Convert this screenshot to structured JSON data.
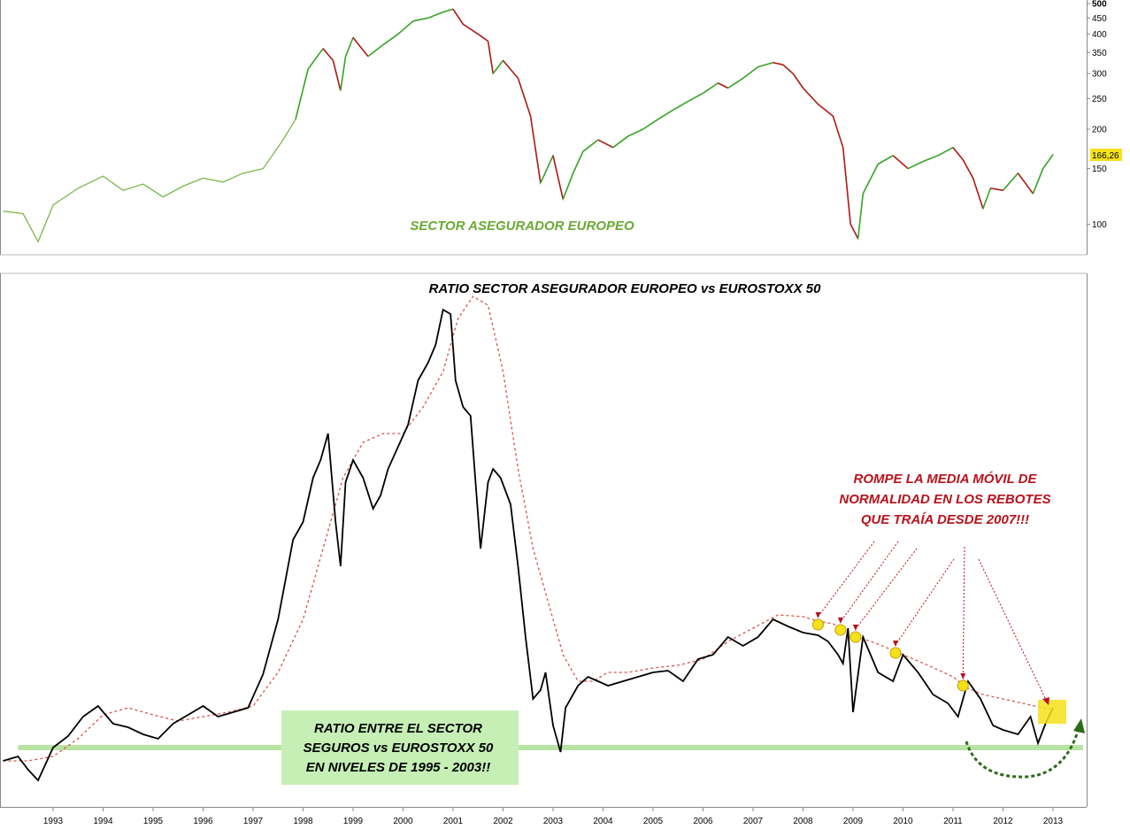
{
  "chart_data": [
    {
      "type": "line",
      "title": "SECTOR ASEGURADOR EUROPEO",
      "y_scale": "log",
      "ylim": [
        80,
        500
      ],
      "y_ticks": [
        500,
        450,
        400,
        350,
        300,
        250,
        200,
        150,
        100
      ],
      "last_value_label": "166,26",
      "colors": {
        "line": "#7ab648",
        "up": "#3aa52a",
        "down": "#b01a1a",
        "title": "#6aa835",
        "last_value_bg": "#f5e11a"
      },
      "x": [
        1992.0,
        1992.4,
        1992.7,
        1993.0,
        1993.5,
        1994.0,
        1994.4,
        1994.8,
        1995.2,
        1995.6,
        1996.0,
        1996.4,
        1996.8,
        1997.2,
        1997.6,
        1997.85,
        1998.1,
        1998.4,
        1998.6,
        1998.75,
        1998.85,
        1999.0,
        1999.3,
        1999.6,
        1999.9,
        2000.2,
        2000.5,
        2000.8,
        2001.0,
        2001.2,
        2001.5,
        2001.7,
        2001.8,
        2002.0,
        2002.3,
        2002.55,
        2002.75,
        2003.0,
        2003.2,
        2003.4,
        2003.6,
        2003.9,
        2004.2,
        2004.5,
        2004.8,
        2005.1,
        2005.4,
        2005.7,
        2006.0,
        2006.3,
        2006.5,
        2006.8,
        2007.1,
        2007.4,
        2007.6,
        2007.8,
        2008.0,
        2008.3,
        2008.6,
        2008.8,
        2008.95,
        2009.1,
        2009.2,
        2009.5,
        2009.8,
        2010.1,
        2010.4,
        2010.7,
        2011.0,
        2011.2,
        2011.4,
        2011.6,
        2011.75,
        2012.0,
        2012.3,
        2012.6,
        2012.8,
        2013.0
      ],
      "y": [
        110,
        108,
        88,
        115,
        130,
        142,
        128,
        134,
        122,
        132,
        140,
        136,
        145,
        150,
        185,
        215,
        310,
        360,
        330,
        265,
        340,
        390,
        340,
        370,
        400,
        440,
        450,
        470,
        480,
        430,
        400,
        380,
        300,
        330,
        290,
        220,
        135,
        165,
        120,
        145,
        170,
        185,
        175,
        190,
        200,
        215,
        230,
        245,
        260,
        280,
        270,
        290,
        315,
        325,
        320,
        300,
        270,
        240,
        220,
        175,
        100,
        90,
        125,
        155,
        165,
        150,
        158,
        165,
        175,
        160,
        140,
        112,
        130,
        128,
        145,
        125,
        150,
        166.26
      ]
    },
    {
      "type": "line",
      "title": "RATIO SECTOR ASEGURADOR EUROPEO vs EUROSTOXX 50",
      "xlim": [
        1992.0,
        2013.6
      ],
      "x_ticks": [
        "1993",
        "1994",
        "1995",
        "1996",
        "1997",
        "1998",
        "1999",
        "2000",
        "2001",
        "2002",
        "2003",
        "2004",
        "2005",
        "2006",
        "2007",
        "2008",
        "2009",
        "2010",
        "2011",
        "2012",
        "2013"
      ],
      "colors": {
        "ratio": "#000000",
        "moving_average": "#d9534f",
        "support": "#b9e3a2",
        "marker": "#f5e11a",
        "annotation": "#b8121b",
        "curve_arrow": "#2e6b1a",
        "box": "#c6efb6"
      },
      "series": [
        {
          "role": "ratio",
          "x": [
            1992.0,
            1992.3,
            1992.5,
            1992.7,
            1993.0,
            1993.3,
            1993.6,
            1993.9,
            1994.2,
            1994.5,
            1994.8,
            1995.1,
            1995.4,
            1995.7,
            1996.0,
            1996.3,
            1996.6,
            1996.9,
            1997.2,
            1997.5,
            1997.8,
            1998.0,
            1998.2,
            1998.35,
            1998.5,
            1998.65,
            1998.75,
            1998.85,
            1999.0,
            1999.2,
            1999.4,
            1999.55,
            1999.7,
            1999.9,
            2000.1,
            2000.3,
            2000.5,
            2000.65,
            2000.8,
            2000.95,
            2001.05,
            2001.2,
            2001.35,
            2001.55,
            2001.7,
            2001.8,
            2001.95,
            2002.15,
            2002.3,
            2002.45,
            2002.6,
            2002.75,
            2002.85,
            2003.0,
            2003.15,
            2003.25,
            2003.35,
            2003.5,
            2003.7,
            2003.9,
            2004.1,
            2004.4,
            2004.7,
            2005.0,
            2005.3,
            2005.6,
            2005.9,
            2006.2,
            2006.5,
            2006.8,
            2007.1,
            2007.4,
            2007.7,
            2008.0,
            2008.3,
            2008.5,
            2008.7,
            2008.8,
            2008.9,
            2009.0,
            2009.2,
            2009.5,
            2009.8,
            2010.0,
            2010.3,
            2010.6,
            2010.9,
            2011.1,
            2011.3,
            2011.55,
            2011.8,
            2012.0,
            2012.3,
            2012.55,
            2012.7,
            2012.85,
            2013.0
          ],
          "y": [
            860,
            855,
            870,
            882,
            845,
            832,
            810,
            798,
            818,
            822,
            830,
            835,
            818,
            808,
            798,
            810,
            805,
            800,
            762,
            700,
            610,
            590,
            540,
            520,
            490,
            590,
            640,
            545,
            520,
            540,
            575,
            560,
            530,
            505,
            480,
            430,
            410,
            390,
            350,
            355,
            430,
            460,
            470,
            620,
            545,
            530,
            540,
            570,
            640,
            720,
            790,
            780,
            760,
            820,
            850,
            800,
            790,
            775,
            765,
            770,
            775,
            770,
            765,
            760,
            758,
            770,
            745,
            740,
            720,
            730,
            720,
            700,
            708,
            715,
            718,
            725,
            740,
            750,
            710,
            805,
            720,
            760,
            770,
            740,
            760,
            785,
            795,
            810,
            770,
            790,
            820,
            825,
            830,
            810,
            840,
            818,
            800
          ]
        },
        {
          "role": "moving_average",
          "x": [
            1992.0,
            1992.5,
            1993.0,
            1993.5,
            1994.0,
            1994.5,
            1995.0,
            1995.5,
            1996.0,
            1996.5,
            1997.0,
            1997.5,
            1998.0,
            1998.4,
            1998.8,
            1999.2,
            1999.6,
            2000.0,
            2000.4,
            2000.8,
            2001.1,
            2001.4,
            2001.7,
            2002.0,
            2002.3,
            2002.6,
            2002.9,
            2003.2,
            2003.5,
            2003.8,
            2004.1,
            2004.5,
            2005.0,
            2005.5,
            2006.0,
            2006.5,
            2007.0,
            2007.5,
            2008.0,
            2008.3,
            2008.6,
            2008.8,
            2009.0,
            2009.5,
            2010.0,
            2010.5,
            2011.0,
            2011.3,
            2011.6,
            2012.0,
            2012.4,
            2012.8,
            2013.0
          ],
          "y": [
            860,
            860,
            855,
            835,
            808,
            800,
            808,
            815,
            810,
            805,
            798,
            760,
            700,
            620,
            540,
            500,
            490,
            490,
            460,
            420,
            360,
            335,
            345,
            420,
            530,
            620,
            680,
            740,
            770,
            770,
            760,
            760,
            755,
            752,
            745,
            725,
            710,
            695,
            697,
            702,
            705,
            712,
            718,
            728,
            740,
            752,
            765,
            778,
            785,
            790,
            795,
            800,
            802
          ]
        },
        {
          "role": "support",
          "x": [
            1992.3,
            2013.6
          ],
          "y": [
            845,
            845
          ]
        }
      ],
      "annotations": [
        "ROMPE LA MEDIA MÓVIL DE",
        "NORMALIDAD EN LOS REBOTES",
        "QUE TRAÍA DESDE 2007!!!"
      ],
      "box_text": [
        "RATIO ENTRE EL SECTOR",
        "SEGUROS vs EUROSTOXX 50",
        "EN NIVELES DE 1995 - 2003!!"
      ],
      "markers": [
        {
          "x": 2008.3,
          "y": 706
        },
        {
          "x": 2008.75,
          "y": 712
        },
        {
          "x": 2009.05,
          "y": 720
        },
        {
          "x": 2009.85,
          "y": 738
        },
        {
          "x": 2011.2,
          "y": 775
        }
      ]
    }
  ]
}
